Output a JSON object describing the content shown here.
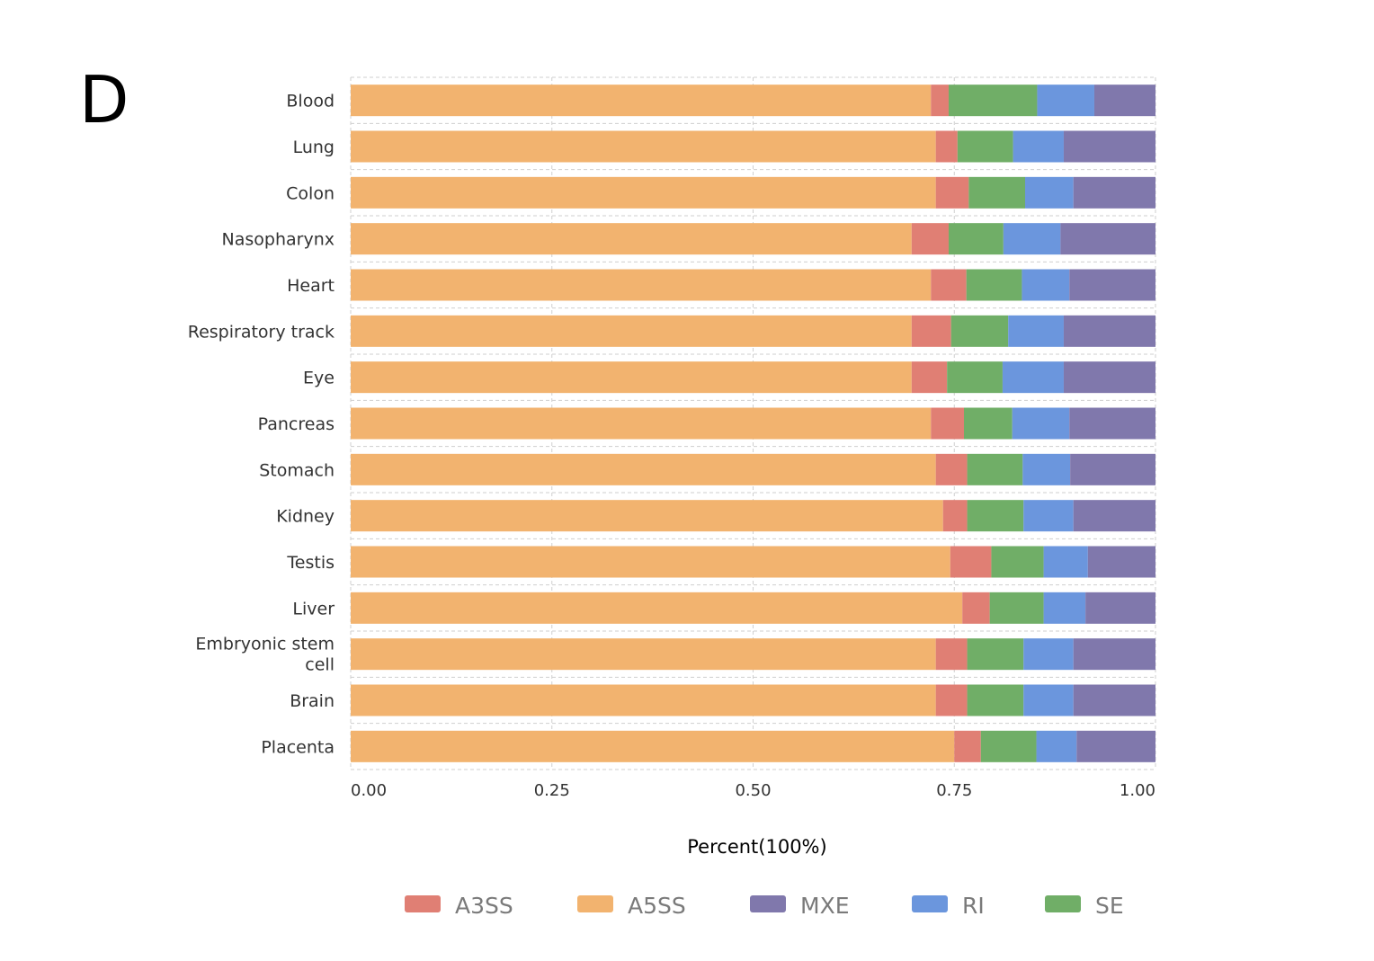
{
  "panel_label": "D",
  "chart_data": {
    "type": "bar",
    "orientation": "horizontal",
    "stacked": true,
    "title": "",
    "xlabel": "Percent(100%)",
    "ylabel": "",
    "xlim": [
      0,
      1
    ],
    "xticks": [
      0,
      0.25,
      0.5,
      0.75,
      1
    ],
    "xtick_labels": [
      "0.00",
      "0.25",
      "0.50",
      "0.75",
      "1.00"
    ],
    "grid": true,
    "legend_position": "bottom",
    "categories": [
      "Blood",
      "Lung",
      "Colon",
      "Nasopharynx",
      "Heart",
      "Respiratory track",
      "Eye",
      "Pancreas",
      "Stomach",
      "Kidney",
      "Testis",
      "Liver",
      "Embryonic stem cell",
      "Brain",
      "Placenta"
    ],
    "stack_order": [
      "A5SS",
      "A3SS",
      "SE",
      "RI",
      "MXE"
    ],
    "series": [
      {
        "name": "A3SS",
        "color": "#e07f74",
        "values": [
          0.022,
          0.027,
          0.041,
          0.046,
          0.044,
          0.049,
          0.044,
          0.041,
          0.039,
          0.03,
          0.051,
          0.034,
          0.039,
          0.039,
          0.033
        ]
      },
      {
        "name": "A5SS",
        "color": "#f2b36f",
        "values": [
          0.721,
          0.727,
          0.727,
          0.697,
          0.721,
          0.697,
          0.697,
          0.721,
          0.727,
          0.736,
          0.745,
          0.76,
          0.727,
          0.727,
          0.75
        ]
      },
      {
        "name": "MXE",
        "color": "#8078ac",
        "values": [
          0.076,
          0.114,
          0.102,
          0.118,
          0.107,
          0.114,
          0.114,
          0.107,
          0.106,
          0.102,
          0.084,
          0.087,
          0.102,
          0.102,
          0.098
        ]
      },
      {
        "name": "RI",
        "color": "#6b96dd",
        "values": [
          0.071,
          0.063,
          0.06,
          0.071,
          0.059,
          0.069,
          0.076,
          0.071,
          0.059,
          0.062,
          0.055,
          0.052,
          0.062,
          0.062,
          0.05
        ]
      },
      {
        "name": "SE",
        "color": "#70ae67",
        "values": [
          0.11,
          0.069,
          0.07,
          0.068,
          0.069,
          0.071,
          0.069,
          0.06,
          0.069,
          0.07,
          0.065,
          0.067,
          0.07,
          0.07,
          0.069
        ]
      }
    ]
  }
}
